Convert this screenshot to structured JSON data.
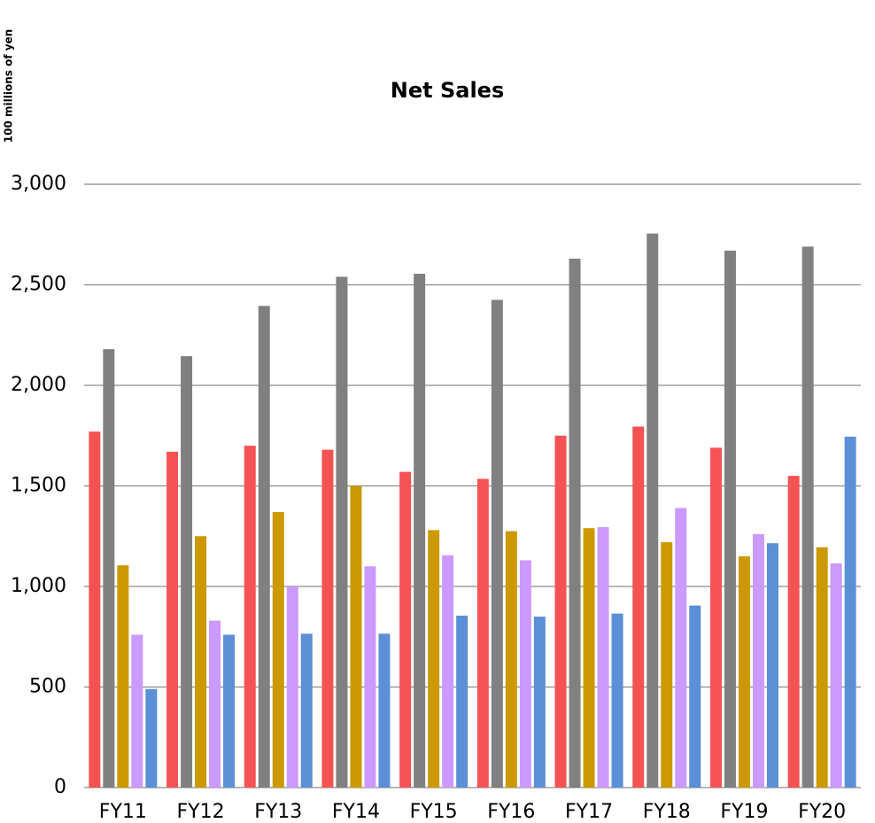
{
  "chart_data": {
    "type": "bar",
    "title": "Net Sales",
    "y_label": "100 millions of yen",
    "categories": [
      "FY11",
      "FY12",
      "FY13",
      "FY14",
      "FY15",
      "FY16",
      "FY17",
      "FY18",
      "FY19",
      "FY20"
    ],
    "series": [
      {
        "color": "#f55353",
        "values": [
          1770,
          1670,
          1700,
          1680,
          1570,
          1535,
          1750,
          1795,
          1690,
          1550
        ]
      },
      {
        "color": "#808080",
        "values": [
          2180,
          2145,
          2395,
          2540,
          2555,
          2425,
          2630,
          2755,
          2670,
          2690
        ]
      },
      {
        "color": "#cc9900",
        "values": [
          1105,
          1250,
          1370,
          1500,
          1280,
          1275,
          1290,
          1220,
          1150,
          1195
        ]
      },
      {
        "color": "#cc99ff",
        "values": [
          760,
          830,
          1000,
          1100,
          1155,
          1130,
          1295,
          1390,
          1260,
          1115
        ]
      },
      {
        "color": "#5b8fd6",
        "values": [
          490,
          760,
          765,
          765,
          855,
          850,
          865,
          905,
          1215,
          1745
        ]
      }
    ],
    "ylim": [
      0,
      3000
    ],
    "yticks": [
      0,
      500,
      {
        "value": 1000,
        "label": "1,000"
      },
      {
        "value": 1500,
        "label": "1,500"
      },
      {
        "value": 2000,
        "label": "2,000"
      },
      {
        "value": 2500,
        "label": "2,500"
      },
      {
        "value": 3000,
        "label": "3,000"
      }
    ],
    "grid": true
  }
}
